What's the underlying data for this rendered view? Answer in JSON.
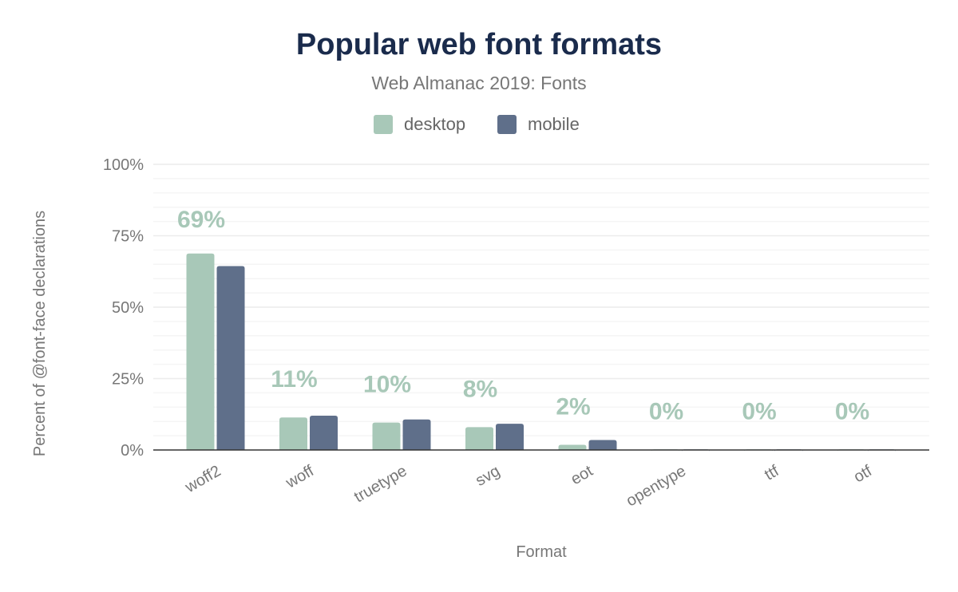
{
  "chart_data": {
    "type": "bar",
    "title": "Popular web font formats",
    "subtitle": "Web Almanac 2019: Fonts",
    "xlabel": "Format",
    "ylabel": "Percent of @font-face declarations",
    "ylim": [
      0,
      100
    ],
    "yticks": [
      "0%",
      "25%",
      "50%",
      "75%",
      "100%"
    ],
    "grid": true,
    "legend_position": "top",
    "categories": [
      "woff2",
      "woff",
      "truetype",
      "svg",
      "eot",
      "opentype",
      "ttf",
      "otf"
    ],
    "series": [
      {
        "name": "desktop",
        "color": "#a8c8b8",
        "values": [
          68.8,
          11.4,
          9.6,
          8.0,
          1.8,
          0.2,
          0.2,
          0.2
        ]
      },
      {
        "name": "mobile",
        "color": "#5f6f8a",
        "values": [
          64.4,
          12.0,
          10.7,
          9.2,
          3.5,
          0.2,
          0.2,
          0.2
        ]
      }
    ],
    "data_labels": [
      "69%",
      "11%",
      "10%",
      "8%",
      "2%",
      "0%",
      "0%",
      "0%"
    ],
    "title_color": "#1a2b4c",
    "label_color": "#a8c8b8"
  }
}
